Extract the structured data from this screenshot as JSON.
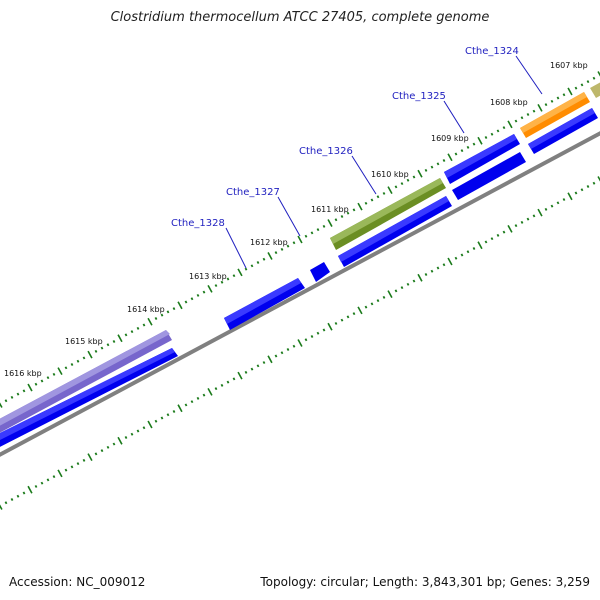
{
  "title": "Clostridium thermocellum ATCC 27405, complete genome",
  "footer": {
    "accession": "Accession: NC_009012",
    "summary": "Topology: circular; Length: 3,843,301 bp; Genes: 3,259"
  },
  "ruler": {
    "labels": [
      "1616 kbp",
      "1615 kbp",
      "1614 kbp",
      "1613 kbp",
      "1612 kbp",
      "1611 kbp",
      "1610 kbp",
      "1609 kbp",
      "1608 kbp",
      "1607 kbp"
    ]
  },
  "genes": [
    "Cthe_1328",
    "Cthe_1327",
    "Cthe_1326",
    "Cthe_1325",
    "Cthe_1324"
  ],
  "colors": {
    "cds": "#0000ee",
    "feature_purple": "#7766cc",
    "feature_olive": "#6b8e23",
    "feature_orange": "#ff8c00",
    "feature_tan": "#bdb76b",
    "backbone": "#808080",
    "ticks": "#1a7a1a",
    "gene_label": "#1f1fbf"
  }
}
